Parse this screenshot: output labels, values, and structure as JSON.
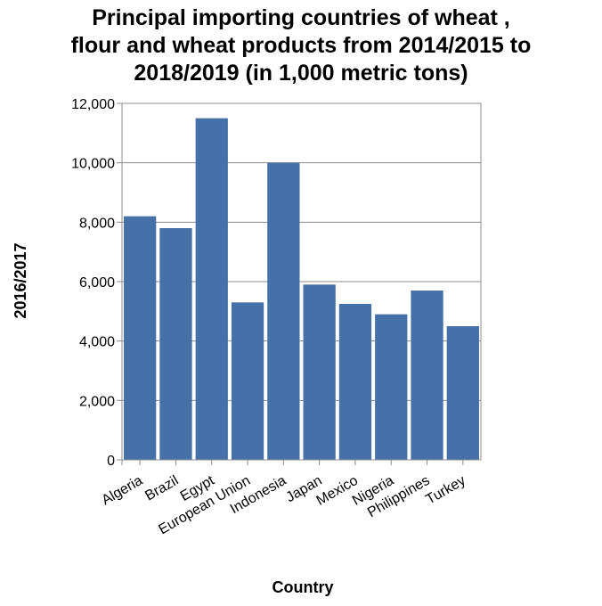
{
  "chart_data": {
    "type": "bar",
    "title_lines": [
      "Principal importing countries of wheat ,",
      "flour and wheat products from 2014/2015 to",
      "2018/2019 (in 1,000 metric tons)"
    ],
    "xlabel": "Country",
    "ylabel": "2016/2017",
    "categories": [
      "Algeria",
      "Brazil",
      "Egypt",
      "European Union",
      "Indonesia",
      "Japan",
      "Mexico",
      "Nigeria",
      "Philippines",
      "Turkey"
    ],
    "values": [
      8200,
      7800,
      11500,
      5300,
      10000,
      5900,
      5250,
      4900,
      5700,
      4500
    ],
    "ylim": [
      0,
      12000
    ],
    "yticks": [
      0,
      2000,
      4000,
      6000,
      8000,
      10000,
      12000
    ],
    "ytick_labels": [
      "0",
      "2,000",
      "4,000",
      "6,000",
      "8,000",
      "10,000",
      "12,000"
    ],
    "bar_color": "#4571a8",
    "grid": true
  }
}
